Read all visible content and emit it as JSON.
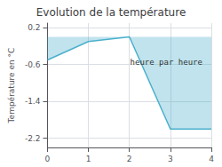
{
  "chart_data": {
    "type": "area",
    "title": "Evolution de la température",
    "ylabel": "Température en °C",
    "x": [
      0,
      1,
      2,
      3,
      4
    ],
    "values": [
      -0.5,
      -0.1,
      0.0,
      -2.0,
      -2.0
    ],
    "color": "#4ab0cc",
    "xlim": [
      0,
      4
    ],
    "xticks": [
      0,
      1,
      2,
      3,
      4
    ],
    "ylim": [
      -2.4,
      0.3
    ],
    "yticks": [
      0.2,
      -0.6,
      -1.4,
      -2.2
    ],
    "grid": true,
    "annotations": [
      {
        "text": "heure par heure",
        "x": 2.9,
        "y": -0.42
      }
    ]
  }
}
